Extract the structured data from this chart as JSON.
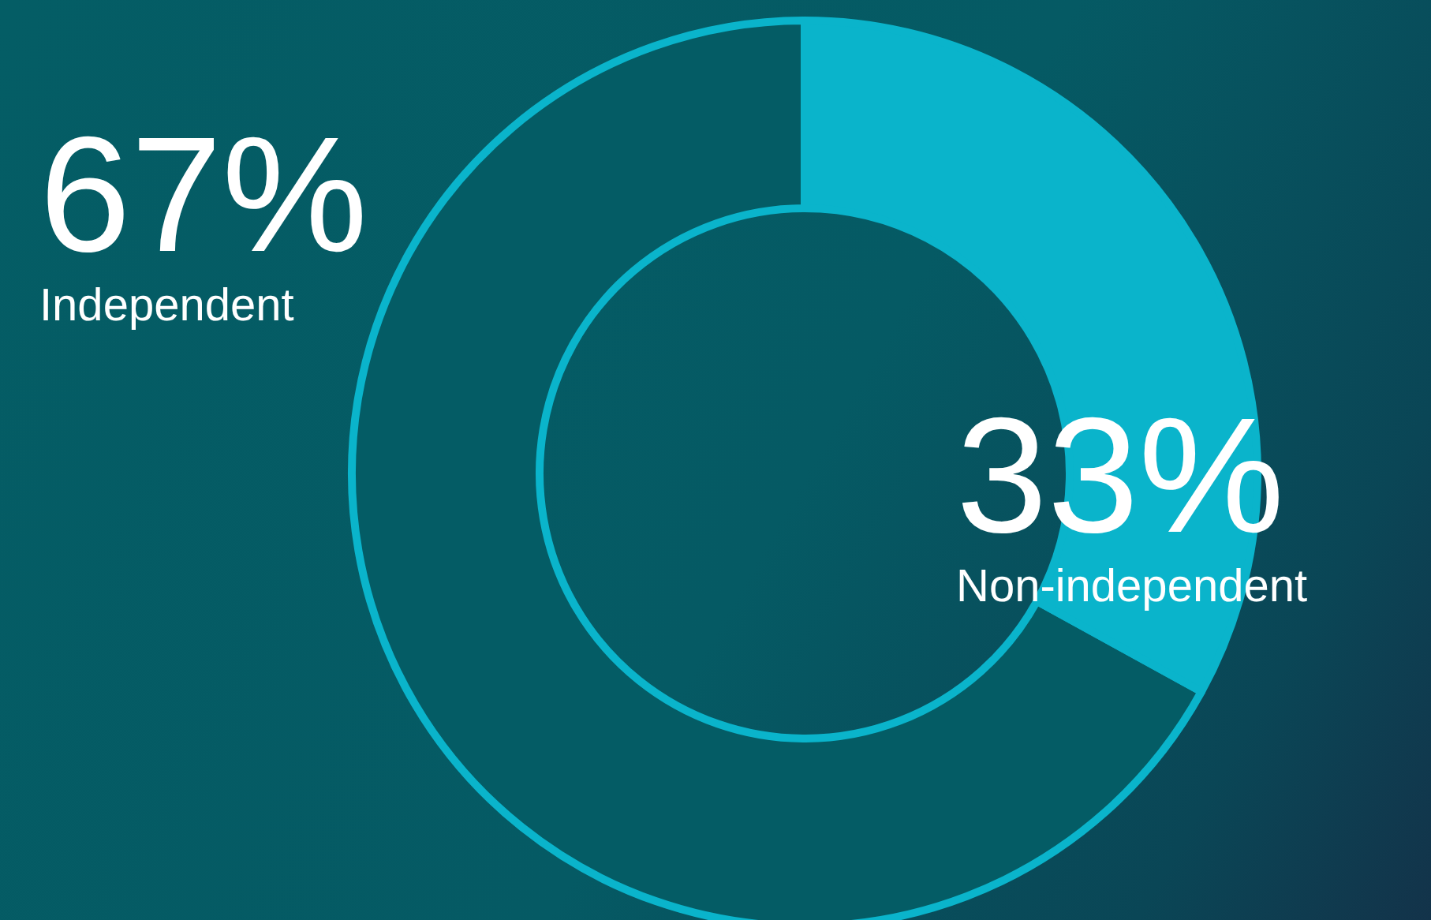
{
  "chart_data": {
    "type": "donut",
    "categories": [
      "Independent",
      "Non-independent"
    ],
    "values": [
      67,
      33
    ],
    "value_labels": [
      "67%",
      "33%"
    ],
    "colors": [
      "#045c65",
      "#0ab4cb"
    ]
  }
}
